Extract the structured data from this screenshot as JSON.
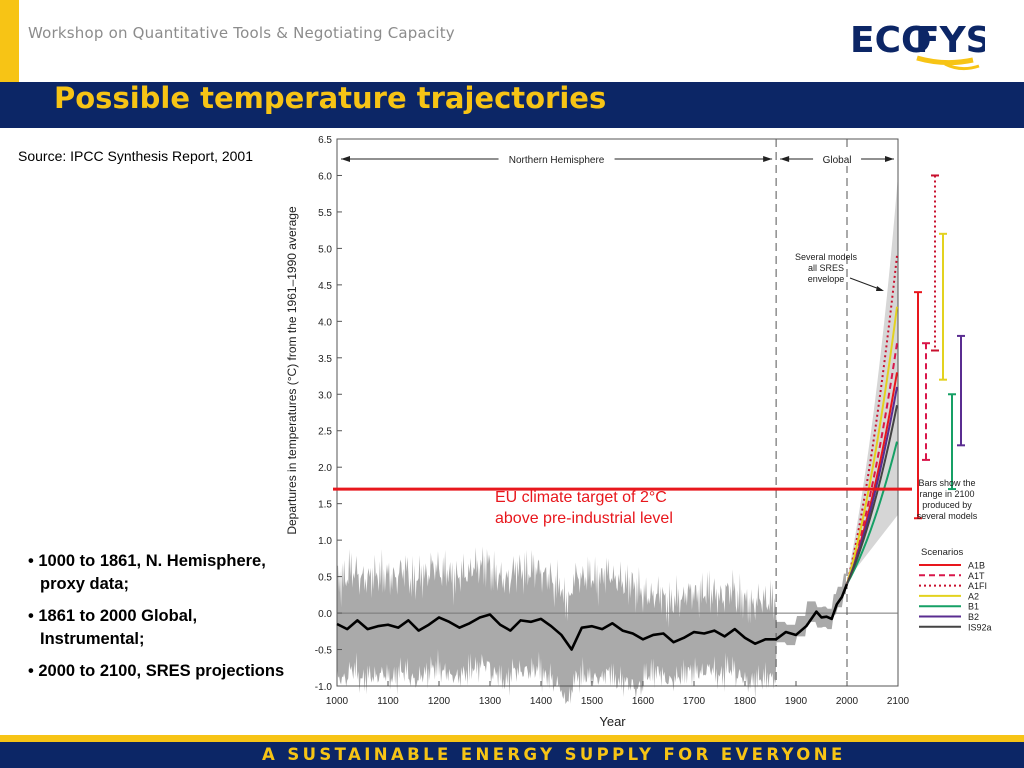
{
  "header": {
    "workshop_title": "Workshop on Quantitative Tools & Negotiating Capacity",
    "logo_part1": "ECO",
    "logo_part2": "FYS",
    "slide_title": "Possible temperature trajectories"
  },
  "source_text": "Source: IPCC Synthesis Report, 2001",
  "bullets": [
    "1000 to 1861, N. Hemisphere, proxy data;",
    "1861 to 2000 Global, Instrumental;",
    "2000 to 2100, SRES projections"
  ],
  "footer": {
    "tagline": "A SUSTAINABLE ENERGY SUPPLY FOR EVERYONE"
  },
  "colors": {
    "navy": "#0c2666",
    "yellow": "#f7c415",
    "eu_red": "#e8171d"
  },
  "chart_data": {
    "type": "line",
    "xlabel": "Year",
    "ylabel": "Departures in temperatures (°C) from the 1961–1990 average",
    "xlim": [
      1000,
      2100
    ],
    "ylim": [
      -1.0,
      6.5
    ],
    "x_ticks": [
      "1000",
      "1100",
      "1200",
      "1300",
      "1400",
      "1500",
      "1600",
      "1700",
      "1800",
      "1900",
      "2000",
      "2100"
    ],
    "y_ticks": [
      "-1.0",
      "-0.5",
      "0.0",
      "0.5",
      "1.0",
      "1.5",
      "2.0",
      "2.5",
      "3.0",
      "3.5",
      "4.0",
      "4.5",
      "5.0",
      "5.5",
      "6.0",
      "6.5"
    ],
    "region_labels": [
      "Northern Hemisphere",
      "Global"
    ],
    "region_dividers": [
      1861,
      2000
    ],
    "annotation_envelope": [
      "Several models",
      "all SRES",
      "envelope"
    ],
    "annotation_bars": [
      "Bars show the",
      "range in 2100",
      "produced by",
      "several models"
    ],
    "eu_target": {
      "label_line1": "EU climate target of 2°C",
      "label_line2": "above pre-industrial level",
      "value": 1.7
    },
    "historical": {
      "x": [
        1000,
        1020,
        1040,
        1060,
        1080,
        1100,
        1120,
        1140,
        1160,
        1180,
        1200,
        1220,
        1240,
        1260,
        1280,
        1300,
        1320,
        1340,
        1360,
        1380,
        1400,
        1420,
        1440,
        1460,
        1480,
        1500,
        1520,
        1540,
        1560,
        1580,
        1600,
        1620,
        1640,
        1660,
        1680,
        1700,
        1720,
        1740,
        1760,
        1780,
        1800,
        1820,
        1840,
        1861,
        1880,
        1900,
        1920,
        1940,
        1950,
        1960,
        1970,
        1980,
        1990,
        2000
      ],
      "y": [
        -0.15,
        -0.22,
        -0.1,
        -0.22,
        -0.18,
        -0.16,
        -0.2,
        -0.1,
        -0.24,
        -0.16,
        -0.06,
        -0.12,
        -0.2,
        -0.14,
        -0.06,
        -0.02,
        -0.16,
        -0.24,
        -0.1,
        -0.12,
        -0.08,
        -0.18,
        -0.3,
        -0.5,
        -0.2,
        -0.18,
        -0.22,
        -0.14,
        -0.24,
        -0.28,
        -0.36,
        -0.3,
        -0.28,
        -0.4,
        -0.34,
        -0.26,
        -0.28,
        -0.24,
        -0.32,
        -0.22,
        -0.34,
        -0.42,
        -0.36,
        -0.36,
        -0.26,
        -0.3,
        -0.18,
        0.02,
        -0.06,
        -0.05,
        -0.08,
        0.12,
        0.22,
        0.4
      ]
    },
    "scenarios": [
      {
        "name": "A1B",
        "color": "#e8171d",
        "style": "solid",
        "y2100": 3.3
      },
      {
        "name": "A1T",
        "color": "#d9174a",
        "style": "dashed",
        "y2100": 3.7
      },
      {
        "name": "A1FI",
        "color": "#c8102e",
        "style": "dotted",
        "y2100": 4.9
      },
      {
        "name": "A2",
        "color": "#e3d21f",
        "style": "solid",
        "y2100": 4.2
      },
      {
        "name": "B1",
        "color": "#16a066",
        "style": "solid",
        "y2100": 2.35
      },
      {
        "name": "B2",
        "color": "#5a2d91",
        "style": "solid",
        "y2100": 3.1
      },
      {
        "name": "IS92a",
        "color": "#444444",
        "style": "solid",
        "y2100": 2.85
      }
    ],
    "range_bars": [
      {
        "color": "#e8171d",
        "style": "solid",
        "min": 1.3,
        "max": 4.4
      },
      {
        "color": "#d9174a",
        "style": "dashed",
        "min": 2.1,
        "max": 3.7
      },
      {
        "color": "#c8102e",
        "style": "dotted",
        "min": 3.6,
        "max": 6.0
      },
      {
        "color": "#e3d21f",
        "style": "solid",
        "min": 3.2,
        "max": 5.2
      },
      {
        "color": "#16a066",
        "style": "solid",
        "min": 1.7,
        "max": 3.0
      },
      {
        "color": "#5a2d91",
        "style": "solid",
        "min": 2.3,
        "max": 3.8
      }
    ],
    "legend_title": "Scenarios"
  }
}
